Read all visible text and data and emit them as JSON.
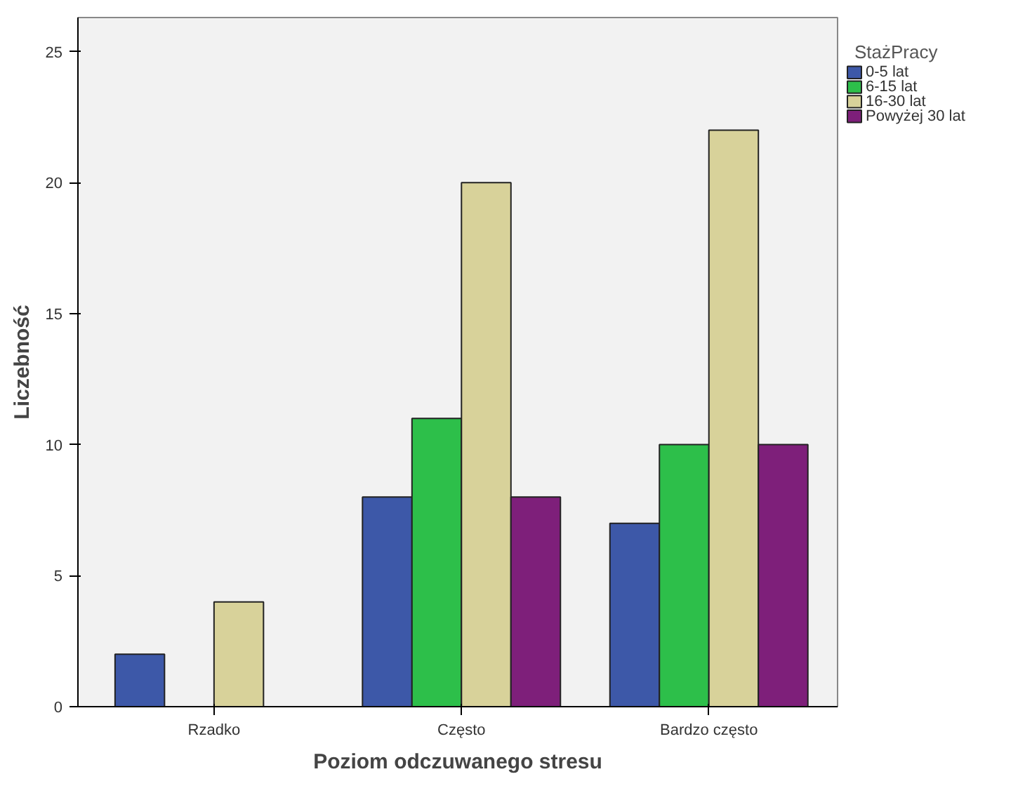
{
  "chart_data": {
    "type": "bar",
    "xlabel": "Poziom odczuwanego stresu",
    "ylabel": "Liczebność",
    "legend_title": "StażPracy",
    "categories": [
      "Rzadko",
      "Często",
      "Bardzo często"
    ],
    "series": [
      {
        "name": "0-5 lat",
        "color": "#3d58a8",
        "values": [
          2,
          8,
          7
        ]
      },
      {
        "name": "6-15 lat",
        "color": "#2dbf4a",
        "values": [
          null,
          11,
          10
        ]
      },
      {
        "name": "16-30 lat",
        "color": "#d8d29a",
        "values": [
          4,
          20,
          22
        ]
      },
      {
        "name": "Powyżej 30 lat",
        "color": "#7e1f7a",
        "values": [
          null,
          8,
          10
        ]
      }
    ],
    "ylim": [
      0,
      26.3
    ],
    "yticks": [
      0,
      5,
      10,
      15,
      20,
      25
    ],
    "grid": false,
    "legend": "top right"
  }
}
